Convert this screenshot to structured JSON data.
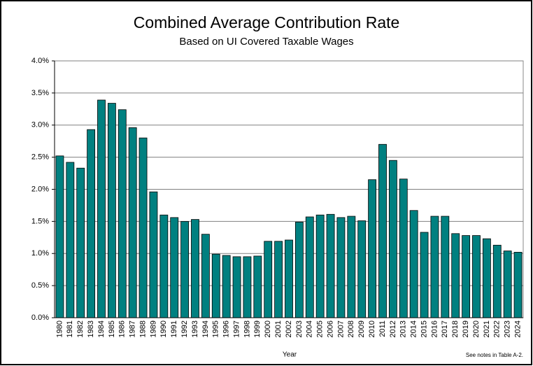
{
  "chart_data": {
    "type": "bar",
    "title": "Combined Average Contribution Rate",
    "subtitle": "Based on UI Covered Taxable Wages",
    "x_label": "Year",
    "note": "See notes in Table A-2.",
    "categories": [
      "1980",
      "1981",
      "1982",
      "1983",
      "1984",
      "1985",
      "1986",
      "1987",
      "1988",
      "1989",
      "1990",
      "1991",
      "1992",
      "1993",
      "1994",
      "1995",
      "1996",
      "1997",
      "1998",
      "1999",
      "2000",
      "2001",
      "2002",
      "2003",
      "2004",
      "2005",
      "2006",
      "2007",
      "2008",
      "2009",
      "2010",
      "2011",
      "2012",
      "2013",
      "2014",
      "2015",
      "2016",
      "2017",
      "2018",
      "2019",
      "2020",
      "2021",
      "2022",
      "2023",
      "2024"
    ],
    "values": [
      2.52,
      2.42,
      2.33,
      2.93,
      3.39,
      3.34,
      3.24,
      2.96,
      2.8,
      1.96,
      1.6,
      1.56,
      1.5,
      1.53,
      1.3,
      0.99,
      0.97,
      0.95,
      0.95,
      0.96,
      1.19,
      1.19,
      1.21,
      1.49,
      1.57,
      1.6,
      1.61,
      1.56,
      1.58,
      1.51,
      2.15,
      2.7,
      2.45,
      2.16,
      1.67,
      1.33,
      1.58,
      1.58,
      1.31,
      1.28,
      1.28,
      1.23,
      1.13,
      1.04,
      1.02
    ],
    "color": "#008080",
    "ylim": [
      0,
      4
    ],
    "yticks": [
      {
        "value": 0,
        "label": "0.0%"
      },
      {
        "value": 0.5,
        "label": "0.5%"
      },
      {
        "value": 1,
        "label": "1.0%"
      },
      {
        "value": 1.5,
        "label": "1.5%"
      },
      {
        "value": 2,
        "label": "2.0%"
      },
      {
        "value": 2.5,
        "label": "2.5%"
      },
      {
        "value": 3,
        "label": "3.0%"
      },
      {
        "value": 3.5,
        "label": "3.5%"
      },
      {
        "value": 4,
        "label": "4.0%"
      }
    ],
    "grid": true
  }
}
